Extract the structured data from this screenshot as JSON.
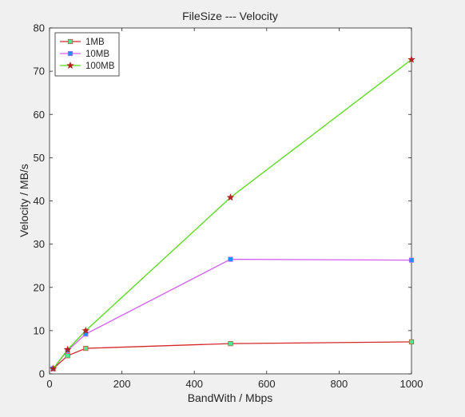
{
  "chart_data": {
    "type": "line",
    "title": "FileSize --- Velocity",
    "xlabel": "BandWith / Mbps",
    "ylabel": "Velocity / MB/s",
    "xlim": [
      0,
      1000
    ],
    "ylim": [
      0,
      80
    ],
    "xticks": [
      0,
      200,
      400,
      600,
      800,
      1000
    ],
    "yticks": [
      0,
      10,
      20,
      30,
      40,
      50,
      60,
      70,
      80
    ],
    "grid": false,
    "legend_position": "top-left",
    "x": [
      10,
      50,
      100,
      500,
      1000
    ],
    "series": [
      {
        "name": "1MB",
        "color": "#d62728",
        "marker": "square",
        "marker_color": "#50e890",
        "values": [
          1.2,
          4.2,
          5.9,
          7.0,
          7.4
        ]
      },
      {
        "name": "10MB",
        "color": "#d25ef5",
        "marker": "square",
        "marker_color": "#1e90ff",
        "values": [
          1.2,
          5.4,
          9.2,
          26.5,
          26.3
        ]
      },
      {
        "name": "100MB",
        "color": "#55d916",
        "marker": "star",
        "marker_color": "#b22222",
        "values": [
          1.2,
          5.6,
          10.0,
          40.8,
          72.7
        ]
      }
    ]
  }
}
